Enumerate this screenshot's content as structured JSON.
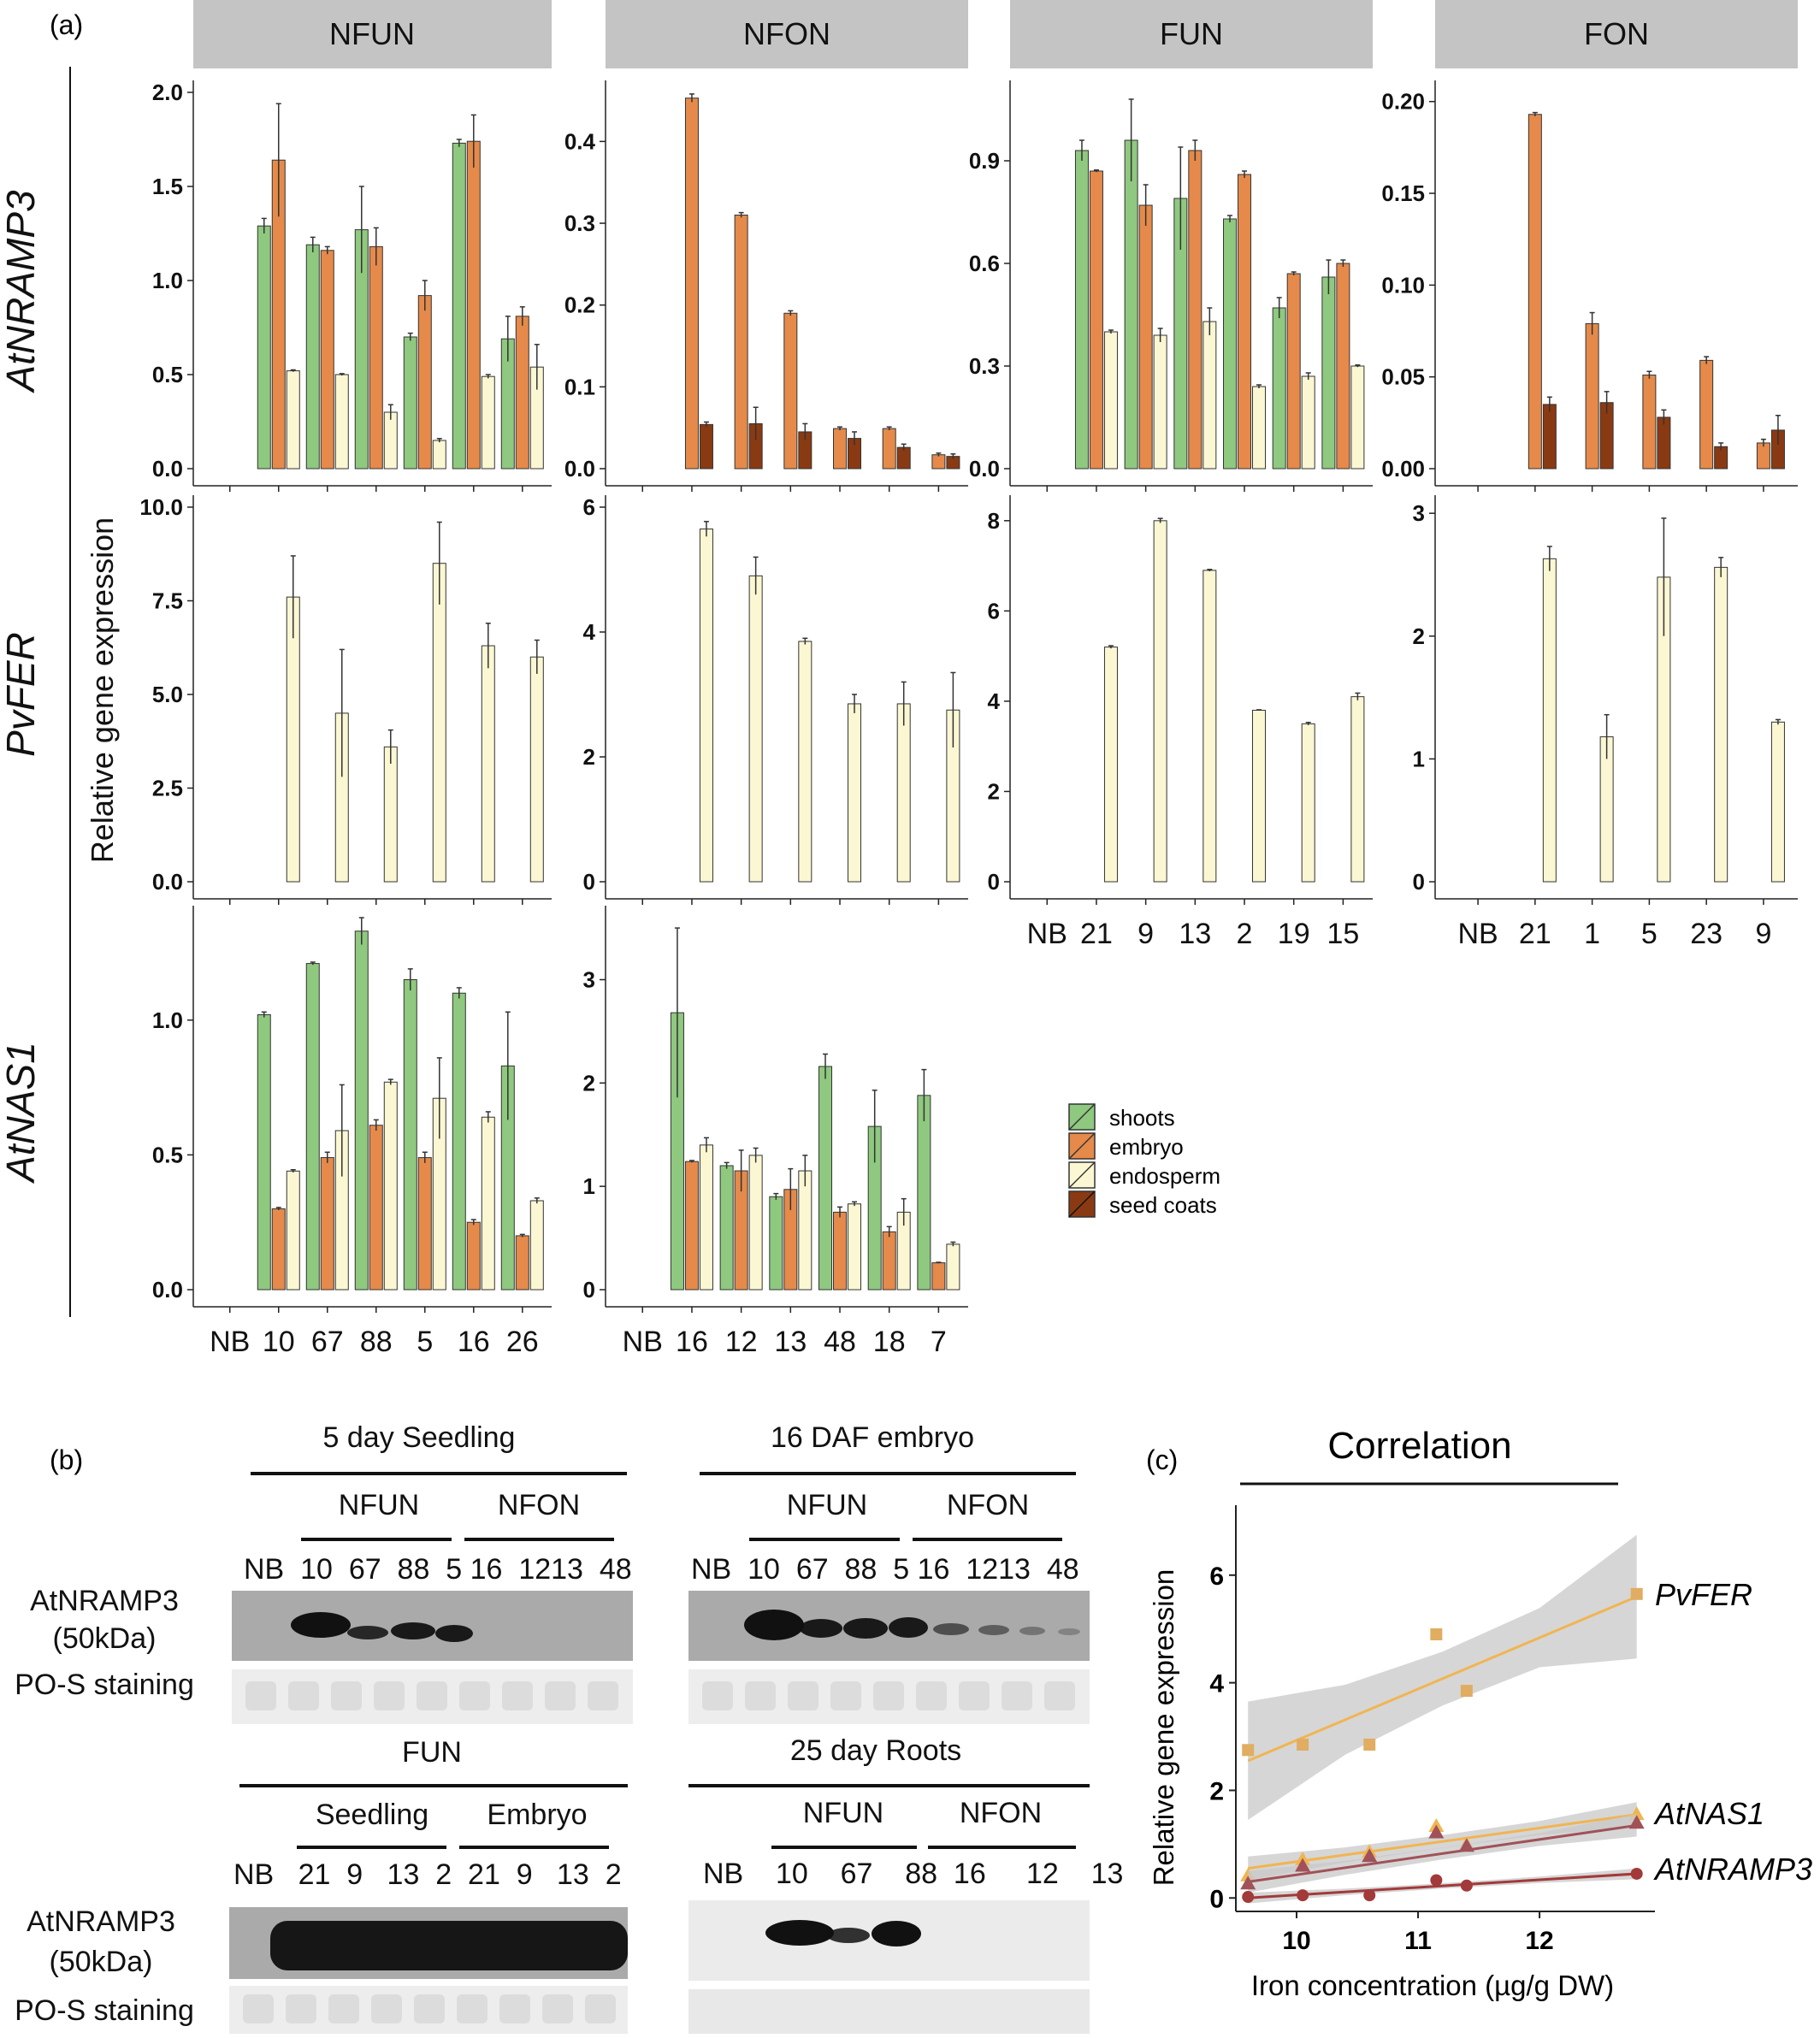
{
  "panel_labels": {
    "a": "(a)",
    "b": "(b)",
    "c": "(c)"
  },
  "colors": {
    "shoots": "#8fc87f",
    "embryo": "#e58a4a",
    "endosperm": "#fbf7d3",
    "seed_coats": "#8a3a12",
    "pvfer_line": "#f0b552",
    "pvfer_point": "#e0ad62",
    "atnas1_line_1": "#f0b552",
    "atnas1_line_2": "#a05258",
    "atnramp3_line": "#a23a3a",
    "band": "#c8c8c8"
  },
  "chart_data": [
    {
      "type": "bar",
      "panel": "a",
      "ylabel": "Relative  gene expression",
      "strips": [
        "NFUN",
        "NFON",
        "FUN",
        "FON"
      ],
      "genes": [
        "AtNRAMP3",
        "PvFER",
        "AtNAS1"
      ],
      "legend": {
        "placement": "right",
        "entries": [
          "shoots",
          "embryo",
          "endosperm",
          "seed coats"
        ]
      },
      "facets": [
        {
          "gene": "AtNRAMP3",
          "strip": "NFUN",
          "ylim": [
            0,
            2.0
          ],
          "yticks": [
            "0.0",
            "0.5",
            "1.0",
            "1.5",
            "2.0"
          ],
          "categories": [
            "NB",
            "10",
            "67",
            "88",
            "5",
            "16",
            "26"
          ],
          "series": [
            {
              "name": "shoots",
              "values": [
                null,
                1.29,
                1.19,
                1.27,
                0.7,
                1.73,
                0.69
              ],
              "err": [
                null,
                0.04,
                0.04,
                0.23,
                0.02,
                0.02,
                0.12
              ]
            },
            {
              "name": "embryo",
              "values": [
                null,
                1.64,
                1.16,
                1.18,
                0.92,
                1.74,
                0.81
              ],
              "err": [
                null,
                0.3,
                0.02,
                0.1,
                0.08,
                0.14,
                0.05
              ]
            },
            {
              "name": "endosperm",
              "values": [
                null,
                0.52,
                0.5,
                0.3,
                0.15,
                0.49,
                0.54
              ],
              "err": [
                null,
                0.005,
                0.005,
                0.04,
                0.01,
                0.01,
                0.12
              ]
            }
          ]
        },
        {
          "gene": "AtNRAMP3",
          "strip": "NFON",
          "ylim": [
            0,
            0.46
          ],
          "yticks": [
            "0.0",
            "0.1",
            "0.2",
            "0.3",
            "0.4"
          ],
          "categories": [
            "NB",
            "16",
            "12",
            "13",
            "48",
            "18",
            "7"
          ],
          "series": [
            {
              "name": "embryo",
              "values": [
                null,
                0.453,
                0.31,
                0.19,
                0.049,
                0.049,
                0.017
              ],
              "err": [
                null,
                0.005,
                0.003,
                0.003,
                0.002,
                0.002,
                0.002
              ]
            },
            {
              "name": "seed coats",
              "values": [
                null,
                0.054,
                0.055,
                0.045,
                0.037,
                0.026,
                0.015
              ],
              "err": [
                null,
                0.003,
                0.02,
                0.01,
                0.008,
                0.004,
                0.003
              ]
            }
          ]
        },
        {
          "gene": "AtNRAMP3",
          "strip": "FUN",
          "ylim": [
            0,
            1.1
          ],
          "yticks": [
            "0.0",
            "0.3",
            "0.6",
            "0.9"
          ],
          "categories": [
            "NB",
            "21",
            "9",
            "13",
            "2",
            "19",
            "15"
          ],
          "series": [
            {
              "name": "shoots",
              "values": [
                null,
                0.93,
                0.96,
                0.79,
                0.73,
                0.47,
                0.56
              ],
              "err": [
                null,
                0.03,
                0.12,
                0.15,
                0.01,
                0.03,
                0.05
              ]
            },
            {
              "name": "embryo",
              "values": [
                null,
                0.87,
                0.77,
                0.93,
                0.86,
                0.57,
                0.6
              ],
              "err": [
                null,
                0.003,
                0.06,
                0.03,
                0.01,
                0.005,
                0.01
              ]
            },
            {
              "name": "endosperm",
              "values": [
                null,
                0.4,
                0.39,
                0.43,
                0.24,
                0.27,
                0.3
              ],
              "err": [
                null,
                0.005,
                0.02,
                0.04,
                0.005,
                0.01,
                0.003
              ]
            }
          ]
        },
        {
          "gene": "AtNRAMP3",
          "strip": "FON",
          "ylim": [
            0,
            0.205
          ],
          "yticks": [
            "0.00",
            "0.05",
            "0.10",
            "0.15",
            "0.20"
          ],
          "categories": [
            "NB",
            "21",
            "1",
            "5",
            "23",
            "9"
          ],
          "series": [
            {
              "name": "embryo",
              "values": [
                null,
                0.193,
                0.079,
                0.051,
                0.059,
                0.014
              ],
              "err": [
                null,
                0.001,
                0.006,
                0.002,
                0.002,
                0.002
              ]
            },
            {
              "name": "seed coats",
              "values": [
                null,
                0.035,
                0.036,
                0.028,
                0.012,
                0.021
              ],
              "err": [
                null,
                0.004,
                0.006,
                0.004,
                0.002,
                0.008
              ]
            }
          ]
        },
        {
          "gene": "PvFER",
          "strip": "NFUN",
          "ylim": [
            0,
            10.0
          ],
          "yticks": [
            "0.0",
            "2.5",
            "5.0",
            "7.5",
            "10.0"
          ],
          "categories": [
            "NB",
            "10",
            "67",
            "88",
            "5",
            "16",
            "26"
          ],
          "series": [
            {
              "name": "endosperm",
              "values": [
                null,
                7.6,
                4.5,
                3.6,
                8.5,
                6.3,
                6.0
              ],
              "err": [
                null,
                1.1,
                1.7,
                0.45,
                1.1,
                0.6,
                0.45
              ]
            }
          ]
        },
        {
          "gene": "PvFER",
          "strip": "NFON",
          "ylim": [
            0,
            6
          ],
          "yticks": [
            "0",
            "2",
            "4",
            "6"
          ],
          "categories": [
            "NB",
            "16",
            "12",
            "13",
            "48",
            "18",
            "7"
          ],
          "series": [
            {
              "name": "endosperm",
              "values": [
                null,
                5.65,
                4.9,
                3.85,
                2.85,
                2.85,
                2.75
              ],
              "err": [
                null,
                0.12,
                0.3,
                0.05,
                0.15,
                0.35,
                0.6
              ]
            }
          ]
        },
        {
          "gene": "PvFER",
          "strip": "FUN",
          "ylim": [
            0,
            8.3
          ],
          "yticks": [
            "0",
            "2",
            "4",
            "6",
            "8"
          ],
          "categories": [
            "NB",
            "21",
            "9",
            "13",
            "2",
            "19",
            "15"
          ],
          "series": [
            {
              "name": "endosperm",
              "values": [
                null,
                5.2,
                8.0,
                6.9,
                3.8,
                3.5,
                4.1
              ],
              "err": [
                null,
                0.03,
                0.05,
                0.02,
                0.01,
                0.03,
                0.08
              ]
            }
          ]
        },
        {
          "gene": "PvFER",
          "strip": "FON",
          "ylim": [
            0,
            3.05
          ],
          "yticks": [
            "0",
            "1",
            "2",
            "3"
          ],
          "categories": [
            "NB",
            "21",
            "1",
            "5",
            "23",
            "9"
          ],
          "series": [
            {
              "name": "endosperm",
              "values": [
                null,
                2.63,
                1.18,
                2.48,
                2.56,
                1.3
              ],
              "err": [
                null,
                0.1,
                0.18,
                0.48,
                0.08,
                0.02
              ]
            }
          ]
        },
        {
          "gene": "AtNAS1",
          "strip": "NFUN",
          "ylim": [
            0,
            1.38
          ],
          "yticks": [
            "0.0",
            "0.5",
            "1.0"
          ],
          "categories": [
            "NB",
            "10",
            "67",
            "88",
            "5",
            "16",
            "26"
          ],
          "series": [
            {
              "name": "shoots",
              "values": [
                null,
                1.02,
                1.21,
                1.33,
                1.15,
                1.1,
                0.83
              ],
              "err": [
                null,
                0.01,
                0.005,
                0.05,
                0.04,
                0.02,
                0.2
              ]
            },
            {
              "name": "embryo",
              "values": [
                null,
                0.3,
                0.49,
                0.61,
                0.49,
                0.25,
                0.2
              ],
              "err": [
                null,
                0.005,
                0.02,
                0.02,
                0.02,
                0.01,
                0.005
              ]
            },
            {
              "name": "endosperm",
              "values": [
                null,
                0.44,
                0.59,
                0.77,
                0.71,
                0.64,
                0.33
              ],
              "err": [
                null,
                0.005,
                0.17,
                0.01,
                0.15,
                0.02,
                0.01
              ]
            }
          ]
        },
        {
          "gene": "AtNAS1",
          "strip": "NFON",
          "ylim": [
            0,
            3.6
          ],
          "yticks": [
            "0",
            "1",
            "2",
            "3"
          ],
          "categories": [
            "NB",
            "16",
            "12",
            "13",
            "48",
            "18",
            "7"
          ],
          "series": [
            {
              "name": "shoots",
              "values": [
                null,
                2.68,
                1.2,
                0.9,
                2.16,
                1.58,
                1.88
              ],
              "err": [
                null,
                0.82,
                0.03,
                0.03,
                0.12,
                0.35,
                0.25
              ]
            },
            {
              "name": "embryo",
              "values": [
                null,
                1.24,
                1.15,
                0.97,
                0.75,
                0.56,
                0.26
              ],
              "err": [
                null,
                0.01,
                0.2,
                0.2,
                0.05,
                0.05,
                0.005
              ]
            },
            {
              "name": "endosperm",
              "values": [
                null,
                1.4,
                1.3,
                1.15,
                0.83,
                0.75,
                0.44
              ],
              "err": [
                null,
                0.07,
                0.07,
                0.15,
                0.02,
                0.13,
                0.02
              ]
            }
          ]
        }
      ]
    },
    {
      "type": "scatter",
      "panel": "c",
      "title": "Correlation",
      "xlabel": "Iron  concentration (µg/g DW)",
      "ylabel": "Relative gene expression",
      "xlim": [
        9.5,
        12.95
      ],
      "ylim": [
        -0.25,
        7.3
      ],
      "xticks": [
        "10",
        "11",
        "12"
      ],
      "yticks": [
        "0",
        "2",
        "4",
        "6"
      ],
      "series": [
        {
          "name": "PvFER",
          "marker": "square",
          "x": [
            9.6,
            10.05,
            10.6,
            11.15,
            11.4,
            12.8
          ],
          "y": [
            2.75,
            2.85,
            2.85,
            4.9,
            3.85,
            5.65
          ],
          "fit": [
            [
              9.6,
              2.55
            ],
            [
              12.8,
              5.6
            ]
          ],
          "band_half": [
            1.1,
            0.65,
            0.5,
            0.55,
            1.15
          ]
        },
        {
          "name": "AtNAS1",
          "marker": "triangle",
          "x": [
            9.6,
            10.05,
            10.6,
            11.15,
            11.4,
            12.8
          ],
          "y": [
            0.42,
            0.72,
            0.86,
            1.34,
            1.0,
            1.56
          ],
          "fit": [
            [
              9.6,
              0.55
            ],
            [
              12.8,
              1.55
            ]
          ],
          "band_half": [
            0.22,
            0.14,
            0.12,
            0.13,
            0.23
          ]
        },
        {
          "name": "AtNAS1",
          "marker": "triangle",
          "x": [
            9.6,
            10.05,
            10.6,
            11.15,
            11.4,
            12.8
          ],
          "y": [
            0.27,
            0.6,
            0.78,
            1.22,
            0.97,
            1.4
          ],
          "fit": [
            [
              9.6,
              0.3
            ],
            [
              12.8,
              1.35
            ]
          ],
          "band_half": [
            0.2,
            0.13,
            0.11,
            0.12,
            0.21
          ]
        },
        {
          "name": "AtNRAMP3",
          "marker": "circle",
          "x": [
            9.6,
            10.05,
            10.6,
            11.15,
            11.4,
            12.8
          ],
          "y": [
            0.02,
            0.05,
            0.05,
            0.33,
            0.23,
            0.45
          ],
          "fit": [
            [
              9.6,
              0.0
            ],
            [
              12.8,
              0.45
            ]
          ],
          "band_half": [
            0.1,
            0.06,
            0.05,
            0.06,
            0.1
          ]
        }
      ],
      "labels": [
        "PvFER",
        "AtNAS1",
        "AtNRAMP3"
      ]
    }
  ],
  "blots": {
    "blocks": [
      {
        "title": "5 day Seedling",
        "groups": [
          "NFUN",
          "NFON"
        ],
        "lanes": [
          "NB",
          "10",
          "67",
          "88",
          "5",
          "16",
          "12",
          "13",
          "48"
        ],
        "lane_text": "NB  10  67  88  5 16  1213  48",
        "row_labels": [
          "AtNRAMP3",
          "(50kDa)",
          "PO-S staining"
        ]
      },
      {
        "title": "16 DAF embryo",
        "groups": [
          "NFUN",
          "NFON"
        ],
        "lanes": [
          "NB",
          "10",
          "67",
          "88",
          "5",
          "16",
          "12",
          "13",
          "48"
        ],
        "lane_text": "NB  10  67  88  5 16  1213  48"
      },
      {
        "title": "FUN",
        "groups": [
          "Seedling",
          "Embryo"
        ],
        "lanes": [
          "NB",
          "21",
          "9",
          "13",
          "2",
          "21",
          "9",
          "13",
          "2"
        ],
        "lane_text": "NB   21  9   13  2  21  9   13  2",
        "row_labels": [
          "AtNRAMP3",
          "(50kDa)",
          "PO-S staining"
        ]
      },
      {
        "title": "25 day Roots",
        "groups": [
          "NFUN",
          "NFON"
        ],
        "lanes": [
          "NB",
          "10",
          "67",
          "88",
          "16",
          "12",
          "13"
        ],
        "lane_text": "NB    10    67    88  16     12    13"
      }
    ]
  }
}
